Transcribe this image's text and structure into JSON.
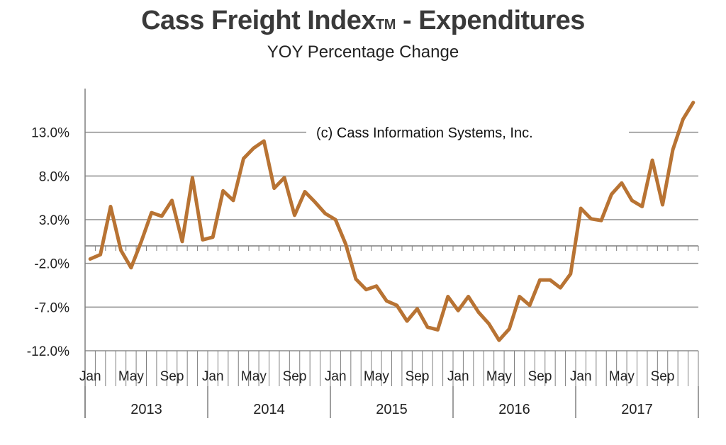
{
  "title": {
    "main": "Cass Freight Index",
    "tm": "TM",
    "rest": " - Expenditures"
  },
  "subtitle": "YOY Percentage Change",
  "annotation": "(c) Cass Information Systems, Inc.",
  "colors": {
    "line": "#b87333",
    "grid": "#8c8c8c",
    "axis": "#7f7f7f"
  },
  "chart_data": {
    "type": "line",
    "title": "Cass Freight Index™ - Expenditures",
    "subtitle": "YOY Percentage Change",
    "ylim": [
      -12,
      18
    ],
    "yticks": [
      13,
      8,
      3,
      -2,
      -7,
      -12
    ],
    "ytick_labels": [
      "13.0%",
      "8.0%",
      "3.0%",
      "-2.0%",
      "-7.0%",
      "-12.0%"
    ],
    "years": [
      "2013",
      "2014",
      "2015",
      "2016",
      "2017"
    ],
    "month_labels": [
      "Jan",
      "May",
      "Sep"
    ],
    "grid": true,
    "series": [
      {
        "values": [
          -1.5,
          -1.0,
          4.5,
          -0.5,
          -2.5,
          0.5,
          3.8,
          3.4,
          5.2,
          0.5,
          7.8,
          0.7,
          1.0,
          6.3,
          5.2,
          10.0,
          11.2,
          12.0,
          6.6,
          7.8,
          3.5,
          6.2,
          5.0,
          3.7,
          3.0,
          0.2,
          -3.8,
          -5.0,
          -4.6,
          -6.3,
          -6.8,
          -8.6,
          -7.2,
          -9.3,
          -9.6,
          -5.8,
          -7.4,
          -5.8,
          -7.6,
          -8.9,
          -10.8,
          -9.5,
          -5.8,
          -6.8,
          -3.9,
          -3.9,
          -4.8,
          -3.2,
          4.3,
          3.1,
          2.9,
          5.9,
          7.2,
          5.2,
          4.5,
          9.8,
          4.7,
          11.0,
          14.5,
          16.4
        ]
      }
    ]
  }
}
